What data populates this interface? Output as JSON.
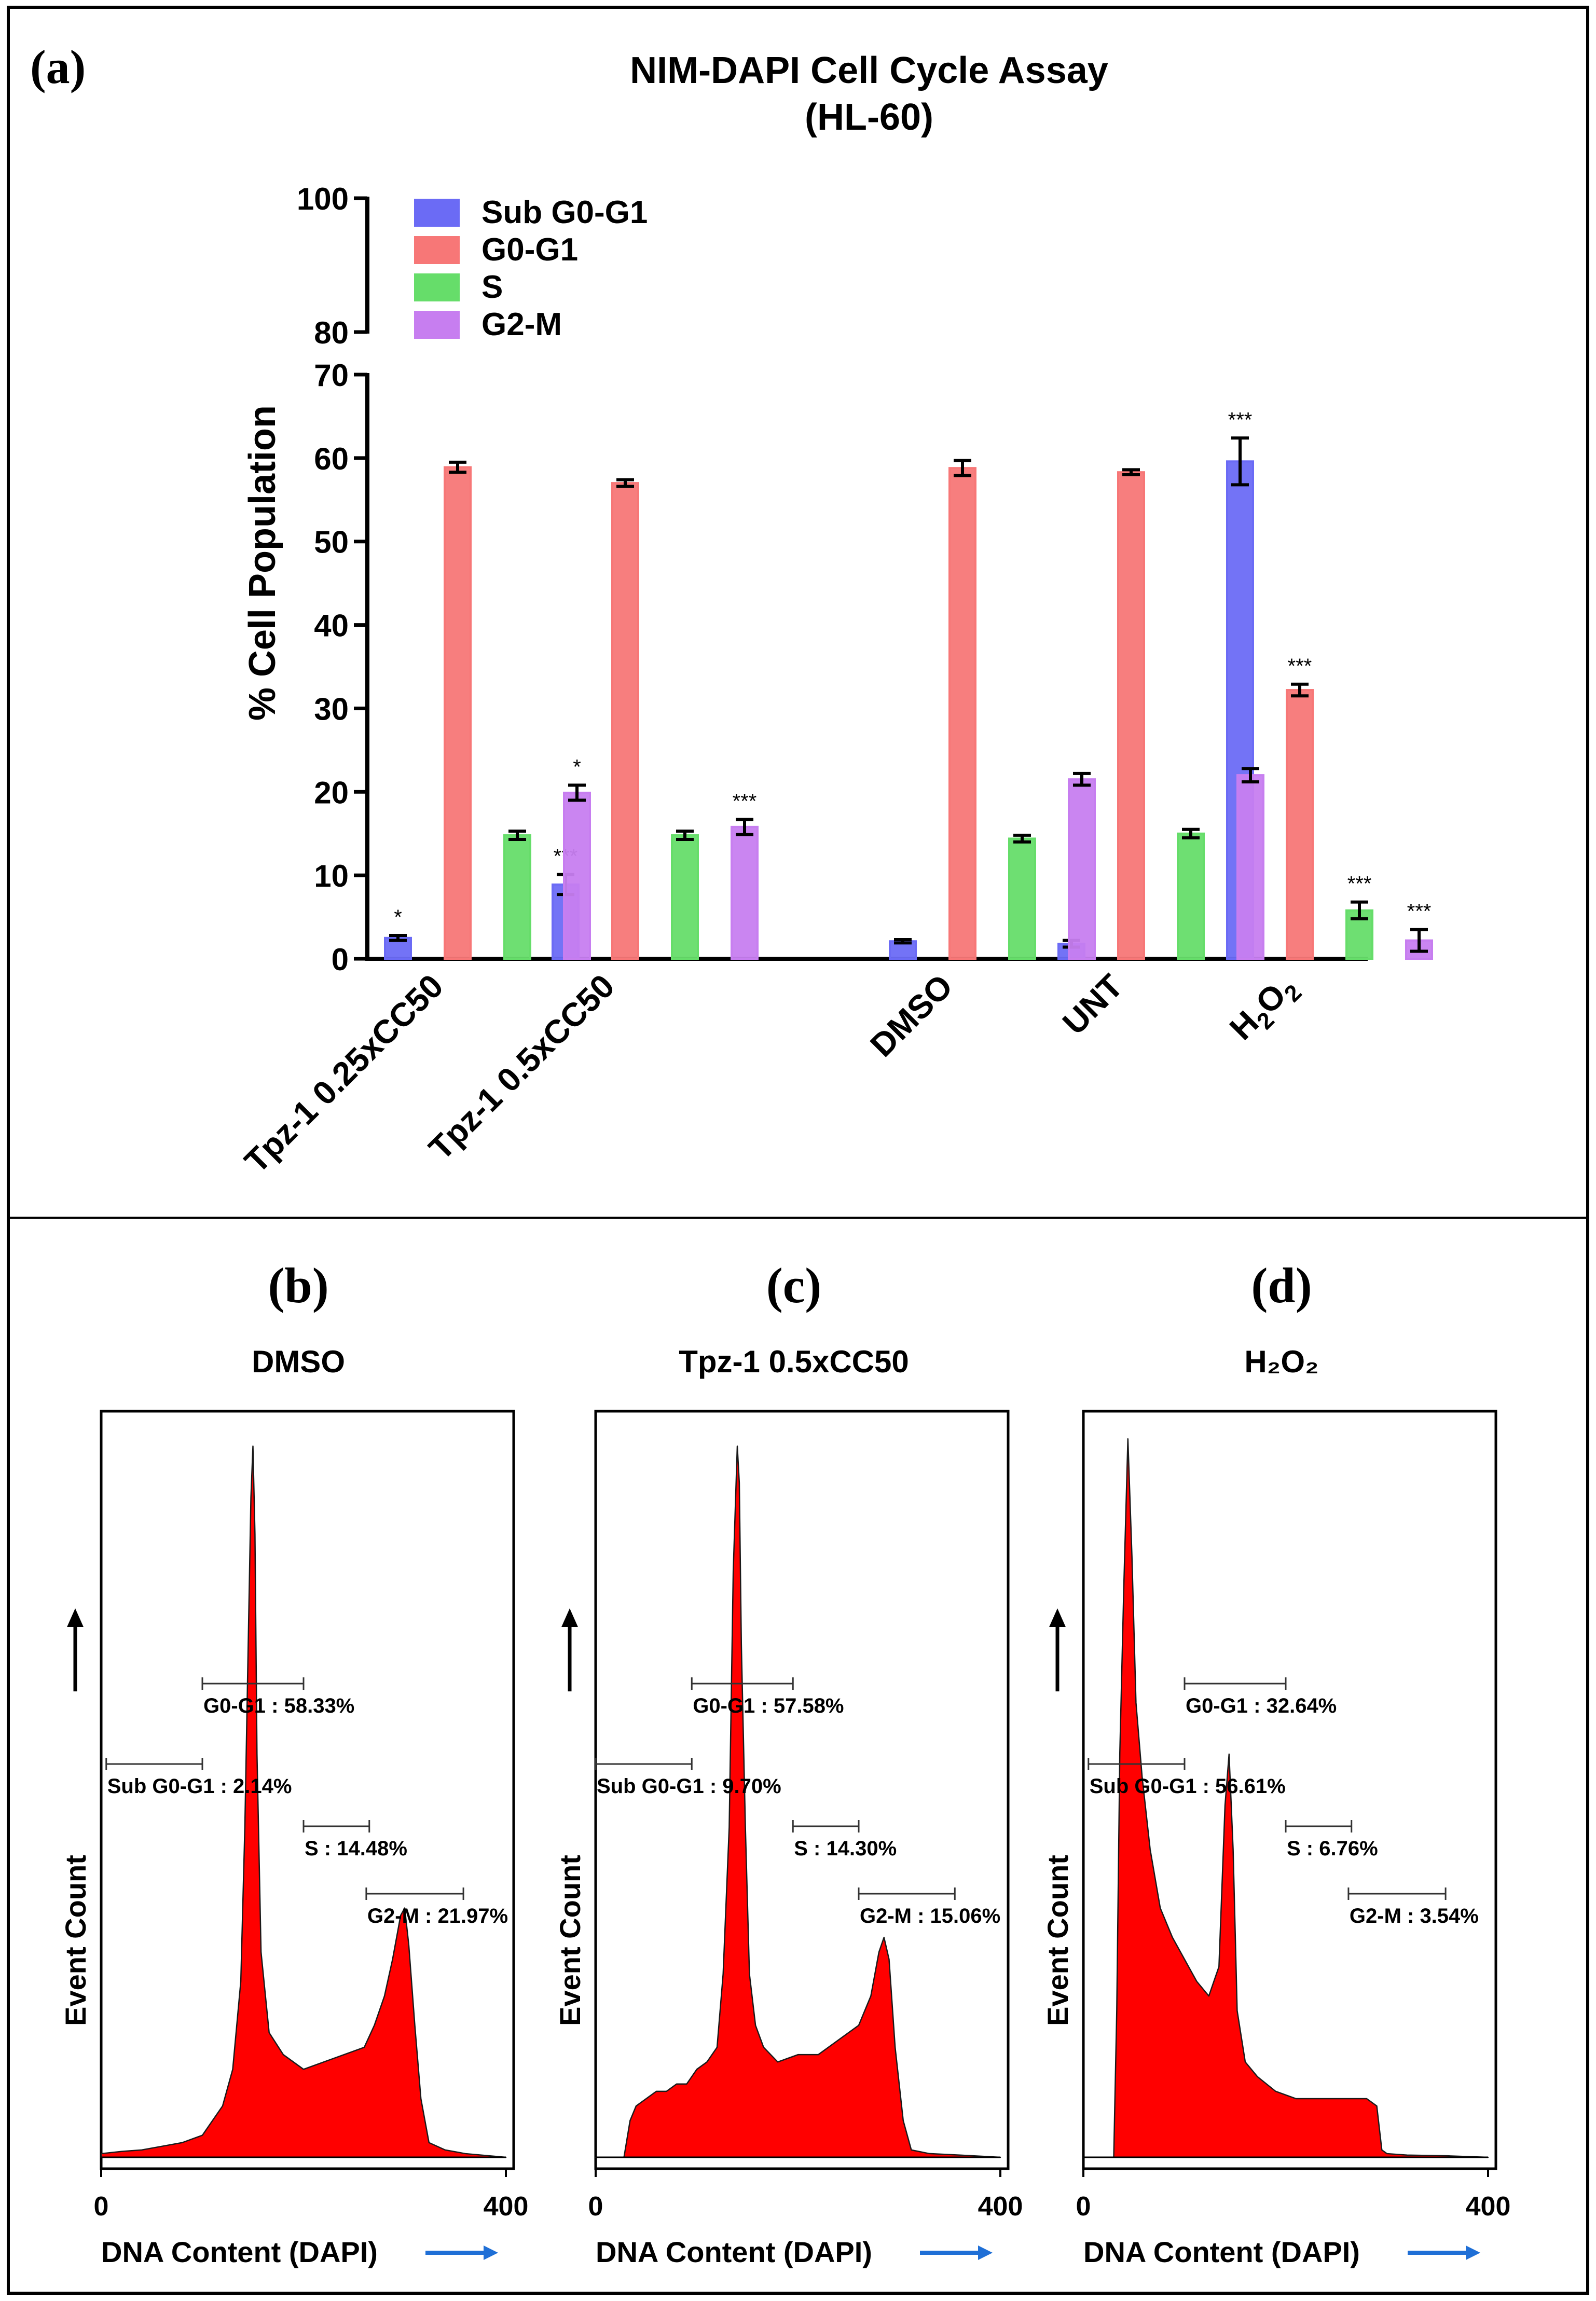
{
  "panel_a": {
    "label": "(a)",
    "title_line1": "NIM-DAPI Cell Cycle Assay",
    "title_line2": "(HL-60)"
  },
  "chart_data": [
    {
      "type": "bar",
      "title": "NIM-DAPI Cell Cycle Assay (HL-60)",
      "xlabel": "",
      "ylabel": "% Cell Population",
      "ylim": [
        0,
        100
      ],
      "y_axis_break": [
        70,
        80
      ],
      "yticks_lower": [
        "0",
        "10",
        "20",
        "30",
        "40",
        "50",
        "60",
        "70"
      ],
      "yticks_upper": [
        "80",
        "100"
      ],
      "categories": [
        "Tpz-1 0.25xCC50",
        "Tpz-1 0.5xCC50",
        "DMSO",
        "UNT",
        "H2O2"
      ],
      "legend_position": "top-left",
      "series": [
        {
          "name": "Sub G0-G1",
          "color": "#6b6bf5",
          "values": [
            2.5,
            8.9,
            2.1,
            1.8,
            59.6
          ],
          "errors": [
            0.3,
            1.2,
            0.2,
            0.4,
            2.8
          ],
          "significance": [
            "*",
            "***",
            "",
            "",
            "***"
          ]
        },
        {
          "name": "G0-G1",
          "color": "#f77777",
          "values": [
            58.9,
            57.0,
            58.8,
            58.3,
            32.2
          ],
          "errors": [
            0.6,
            0.4,
            0.9,
            0.3,
            0.7
          ],
          "significance": [
            "",
            "",
            "",
            "",
            "***"
          ]
        },
        {
          "name": "S",
          "color": "#66dd6a",
          "values": [
            14.8,
            14.8,
            14.4,
            15.0,
            5.8
          ],
          "errors": [
            0.5,
            0.5,
            0.4,
            0.5,
            1.0
          ],
          "significance": [
            "",
            "",
            "",
            "",
            "***"
          ]
        },
        {
          "name": "G2-M",
          "color": "#c77ef0",
          "values": [
            19.9,
            15.8,
            21.5,
            22.0,
            2.2
          ],
          "errors": [
            0.9,
            0.9,
            0.7,
            0.8,
            1.3
          ],
          "significance": [
            "*",
            "***",
            "",
            "",
            "***"
          ]
        }
      ]
    },
    {
      "type": "area",
      "panel": "(b)",
      "title": "DMSO",
      "xlabel": "DNA Content (DAPI)",
      "ylabel": "Event Count",
      "xlim": [
        0,
        400
      ],
      "xticks": [
        "0",
        "400"
      ],
      "color": "#ff0000",
      "x": [
        0,
        20,
        40,
        60,
        80,
        100,
        120,
        130,
        138,
        142,
        146,
        148,
        150,
        152,
        154,
        158,
        166,
        180,
        200,
        220,
        240,
        260,
        270,
        280,
        288,
        296,
        300,
        304,
        310,
        316,
        324,
        340,
        360,
        400
      ],
      "y": [
        0.5,
        0.8,
        1,
        1.5,
        2,
        3,
        7,
        12,
        24,
        45,
        75,
        90,
        97,
        85,
        55,
        28,
        17,
        14,
        12,
        13,
        14,
        15,
        18,
        22,
        27,
        33,
        34,
        29,
        18,
        8,
        2,
        1,
        0.5,
        0
      ],
      "gates": [
        {
          "label": "G0-G1 : 58.33%",
          "from": 100,
          "to": 200
        },
        {
          "label": "Sub G0-G1 : 2.14%",
          "from": 5,
          "to": 100
        },
        {
          "label": "S : 14.48%",
          "from": 200,
          "to": 265
        },
        {
          "label": "G2-M : 21.97%",
          "from": 262,
          "to": 358
        }
      ]
    },
    {
      "type": "area",
      "panel": "(c)",
      "title": "Tpz-1 0.5xCC50",
      "xlabel": "DNA Content (DAPI)",
      "ylabel": "Event Count",
      "xlim": [
        0,
        400
      ],
      "xticks": [
        "0",
        "400"
      ],
      "color": "#ff0000",
      "x": [
        0,
        28,
        34,
        40,
        50,
        60,
        70,
        80,
        90,
        100,
        110,
        120,
        126,
        132,
        136,
        140,
        142,
        144,
        148,
        152,
        158,
        166,
        180,
        200,
        220,
        240,
        260,
        272,
        280,
        285,
        290,
        296,
        304,
        312,
        330,
        360,
        400
      ],
      "y": [
        0,
        0,
        5,
        7,
        8,
        9,
        9,
        10,
        10,
        12,
        13,
        15,
        25,
        45,
        80,
        97,
        92,
        70,
        45,
        25,
        18,
        15,
        13,
        14,
        14,
        16,
        18,
        22,
        28,
        30,
        27,
        15,
        5,
        1,
        0.5,
        0.3,
        0
      ],
      "gates": [
        {
          "label": "G0-G1 : 57.58%",
          "from": 95,
          "to": 195
        },
        {
          "label": "Sub G0-G1 : 9.70%",
          "from": 0,
          "to": 95
        },
        {
          "label": "S : 14.30%",
          "from": 195,
          "to": 260
        },
        {
          "label": "G2-M : 15.06%",
          "from": 260,
          "to": 355
        }
      ]
    },
    {
      "type": "area",
      "panel": "(d)",
      "title": "H2O2",
      "xlabel": "DNA Content (DAPI)",
      "ylabel": "Event Count",
      "xlim": [
        0,
        400
      ],
      "xticks": [
        "0",
        "400"
      ],
      "color": "#ff0000",
      "x": [
        0,
        30,
        33,
        36,
        40,
        44,
        48,
        52,
        58,
        66,
        76,
        88,
        100,
        112,
        124,
        134,
        140,
        144,
        148,
        152,
        160,
        172,
        190,
        210,
        230,
        260,
        280,
        290,
        295,
        300,
        320,
        360,
        400
      ],
      "y": [
        0,
        0,
        20,
        55,
        78,
        98,
        82,
        62,
        52,
        42,
        34,
        30,
        27,
        24,
        22,
        26,
        48,
        55,
        42,
        20,
        13,
        11,
        9,
        8,
        8,
        8,
        8,
        7,
        1,
        0.5,
        0.3,
        0.2,
        0
      ],
      "gates": [
        {
          "label": "G0-G1 : 32.64%",
          "from": 100,
          "to": 200
        },
        {
          "label": "Sub G0-G1 : 56.61%",
          "from": 5,
          "to": 100
        },
        {
          "label": "S : 6.76%",
          "from": 200,
          "to": 265
        },
        {
          "label": "G2-M : 3.54%",
          "from": 262,
          "to": 358
        }
      ]
    }
  ],
  "panels_bottom": [
    {
      "label": "(b)",
      "title": "DMSO"
    },
    {
      "label": "(c)",
      "title": "Tpz-1 0.5xCC50"
    },
    {
      "label": "(d)",
      "title": "H₂O₂"
    }
  ]
}
